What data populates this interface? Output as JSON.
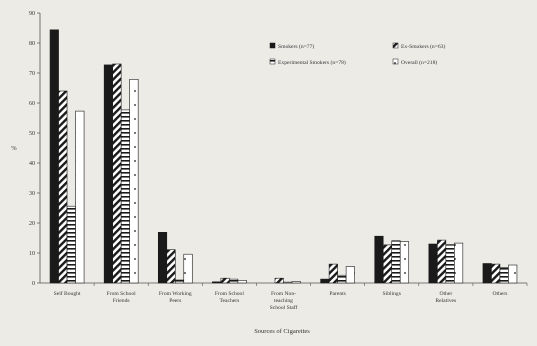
{
  "chart_data": {
    "type": "bar",
    "title": "",
    "xlabel": "Sources of Cigarettes",
    "ylabel": "%",
    "ylim": [
      0,
      90
    ],
    "yticks": [
      0,
      10,
      20,
      30,
      40,
      50,
      60,
      70,
      80,
      90
    ],
    "grid": false,
    "legend_position": "top-right",
    "categories": [
      [
        "Self Bought"
      ],
      [
        "From School",
        "Friends"
      ],
      [
        "From Working",
        "Peers"
      ],
      [
        "From School",
        "Teachers"
      ],
      [
        "From Non-",
        "teaching",
        "School Staff"
      ],
      [
        "Parents"
      ],
      [
        "Siblings"
      ],
      [
        "Other",
        "Relatives"
      ],
      [
        "Others"
      ]
    ],
    "series": [
      {
        "name": "Smokers (n=77)",
        "pattern": "solid",
        "values": [
          84.4,
          72.7,
          16.9,
          0.4,
          0,
          1.3,
          15.6,
          13.0,
          6.5
        ]
      },
      {
        "name": "Ex-Smokers (n=63)",
        "pattern": "diagonal",
        "values": [
          64.0,
          73.0,
          11.1,
          1.6,
          1.6,
          6.3,
          12.7,
          14.3,
          6.3
        ]
      },
      {
        "name": "Experimental Smokers (n=78)",
        "pattern": "horizontal",
        "values": [
          25.6,
          57.7,
          1.0,
          1.3,
          0.3,
          2.6,
          14.1,
          12.8,
          5.1
        ]
      },
      {
        "name": "Overall (n=218)",
        "pattern": "dotted",
        "values": [
          57.3,
          67.9,
          9.6,
          0.9,
          0.5,
          5.5,
          13.8,
          13.3,
          6.0
        ]
      }
    ]
  }
}
